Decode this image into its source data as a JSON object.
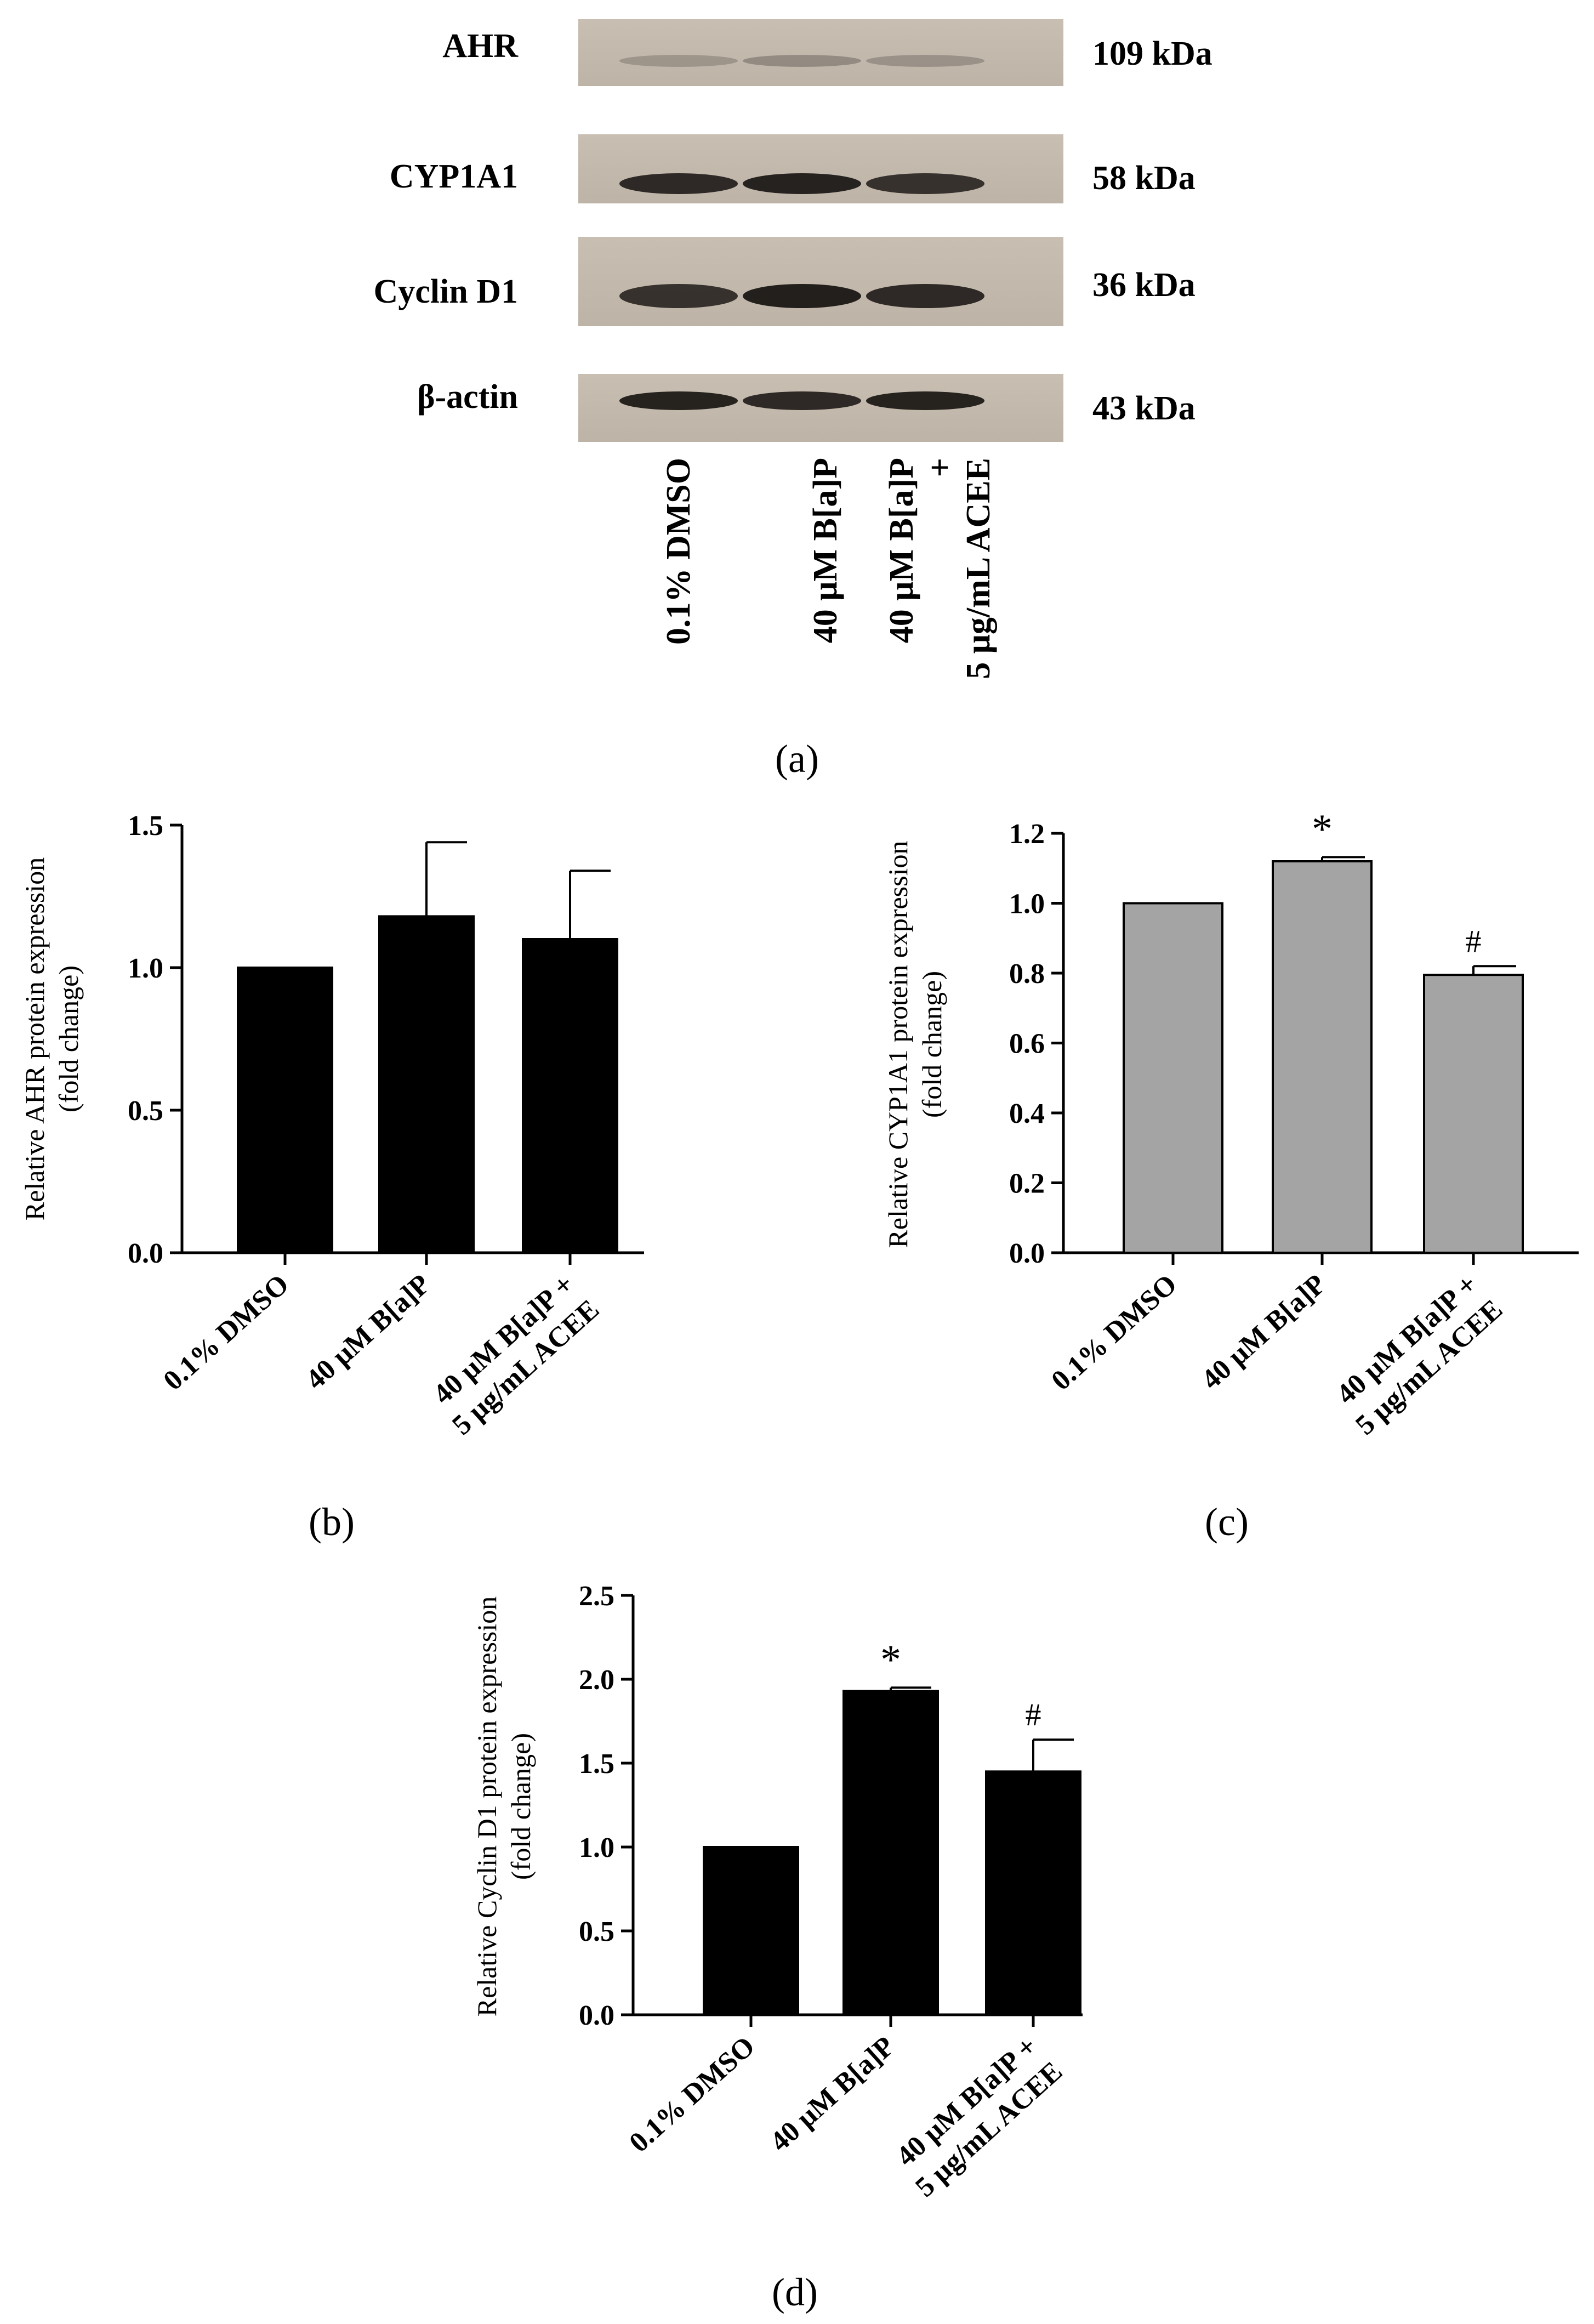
{
  "blot": {
    "rows": [
      {
        "label": "AHR",
        "size": "109 kDa"
      },
      {
        "label": "CYP1A1",
        "size": "58 kDa"
      },
      {
        "label": "Cyclin D1",
        "size": "36 kDa"
      },
      {
        "label": "β-actin",
        "size": "43 kDa"
      }
    ],
    "lanes": [
      {
        "lines": [
          "0.1% DMSO"
        ]
      },
      {
        "lines": [
          "40 μM B[a]P"
        ]
      },
      {
        "lines": [
          "40 μM B[a]P",
          "+",
          "5 μg/mL ACEE"
        ]
      }
    ],
    "caption": "(a)"
  },
  "chart_data": [
    {
      "panel": "b",
      "caption": "(b)",
      "type": "bar",
      "color": "#000000",
      "ylabel_lines": [
        "Relative AHR protein expression",
        "(fold change)"
      ],
      "categories": [
        [
          "0.1% DMSO"
        ],
        [
          "40 μM B[a]P"
        ],
        [
          "40 μM B[a]P +",
          "5 μg/mL ACEE"
        ]
      ],
      "values": [
        1.0,
        1.18,
        1.1
      ],
      "errors": [
        0,
        0.26,
        0.24
      ],
      "annotations": [
        "",
        "",
        ""
      ],
      "ylim": [
        0,
        1.5
      ],
      "yticks": [
        0.0,
        0.5,
        1.0,
        1.5
      ],
      "tick_format": 1
    },
    {
      "panel": "c",
      "caption": "(c)",
      "type": "bar",
      "color": "#a4a4a4",
      "ylabel_lines": [
        "Relative CYP1A1 protein expression",
        "(fold change)"
      ],
      "categories": [
        [
          "0.1% DMSO"
        ],
        [
          "40 μM B[a]P"
        ],
        [
          "40 μM B[a]P +",
          "5 μg/mL ACEE"
        ]
      ],
      "values": [
        1.0,
        1.12,
        0.795
      ],
      "errors": [
        0,
        0.012,
        0.025
      ],
      "annotations": [
        "",
        "*",
        "#"
      ],
      "ylim": [
        0,
        1.2
      ],
      "yticks": [
        0.0,
        0.2,
        0.4,
        0.6,
        0.8,
        1.0,
        1.2
      ],
      "tick_format": 1
    },
    {
      "panel": "d",
      "caption": "(d)",
      "type": "bar",
      "color": "#000000",
      "ylabel_lines": [
        "Relative Cyclin D1 protein expression",
        "(fold change)"
      ],
      "categories": [
        [
          "0.1% DMSO"
        ],
        [
          "40 μM B[a]P"
        ],
        [
          "40 μM B[a]P +",
          "5 μg/mL ACEE"
        ]
      ],
      "values": [
        1.0,
        1.93,
        1.45
      ],
      "errors": [
        0,
        0.02,
        0.19
      ],
      "annotations": [
        "",
        "*",
        "#"
      ],
      "ylim": [
        0,
        2.5
      ],
      "yticks": [
        0.0,
        0.5,
        1.0,
        1.5,
        2.0,
        2.5
      ],
      "tick_format": 1
    }
  ]
}
